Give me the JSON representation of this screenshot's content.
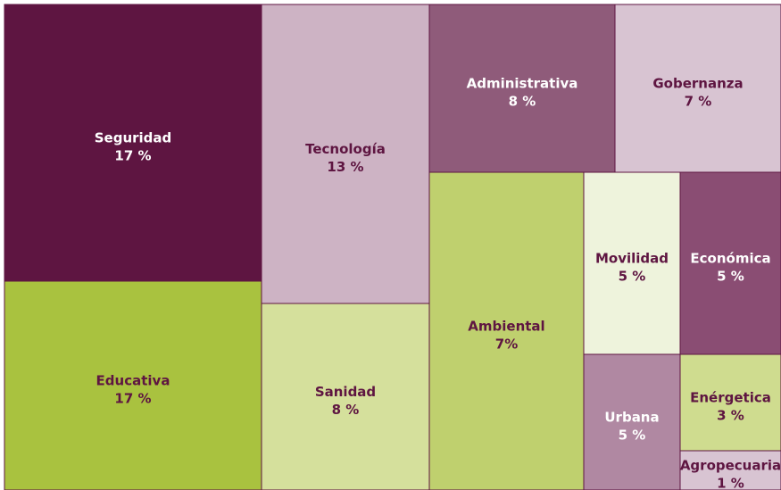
{
  "chart_data": {
    "type": "treemap",
    "categories": [
      "Seguridad",
      "Educativa",
      "Tecnología",
      "Sanidad",
      "Administrativa",
      "Gobernanza",
      "Ambiental",
      "Movilidad",
      "Económica",
      "Urbana",
      "Enérgetica",
      "Agropecuaria"
    ],
    "values": [
      17,
      17,
      13,
      8,
      8,
      7,
      7,
      5,
      5,
      5,
      3,
      1
    ],
    "value_labels": [
      "17 %",
      "17 %",
      "13 %",
      "8 %",
      "8 %",
      "7 %",
      "7%",
      "5 %",
      "5 %",
      "5 %",
      "3 %",
      "1 %"
    ],
    "colors": [
      "#5e1541",
      "#a9c23f",
      "#cdb3c4",
      "#d5e09c",
      "#8f5b7a",
      "#d8c4d2",
      "#bfd06e",
      "#eef3dc",
      "#8a4d73",
      "#b088a2",
      "#cfdc8f",
      "#d8c4d2"
    ],
    "label_colors": [
      "#ffffff",
      "#5e1541",
      "#5e1541",
      "#5e1541",
      "#ffffff",
      "#5e1541",
      "#5e1541",
      "#5e1541",
      "#ffffff",
      "#ffffff",
      "#5e1541",
      "#5e1541"
    ]
  }
}
